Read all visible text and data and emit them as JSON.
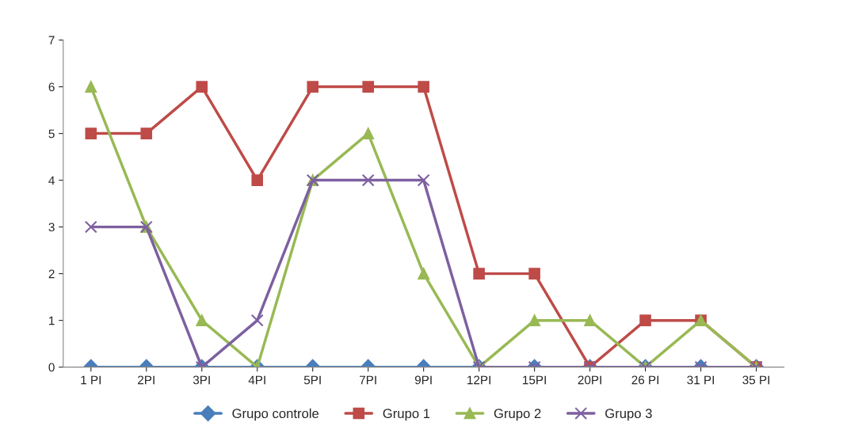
{
  "chart_data": {
    "type": "line",
    "categories": [
      "1 PI",
      "2PI",
      "3PI",
      "4PI",
      "5PI",
      "7PI",
      "9PI",
      "12PI",
      "15PI",
      "20PI",
      "26 PI",
      "31 PI",
      "35 PI"
    ],
    "series": [
      {
        "name": "Grupo controle",
        "color": "#4a7ebb",
        "marker": "diamond",
        "values": [
          0,
          0,
          0,
          0,
          0,
          0,
          0,
          0,
          0,
          0,
          0,
          0,
          0
        ]
      },
      {
        "name": "Grupo 1",
        "color": "#be4b48",
        "marker": "square",
        "values": [
          5,
          5,
          6,
          4,
          6,
          6,
          6,
          2,
          2,
          0,
          1,
          1,
          0
        ]
      },
      {
        "name": "Grupo 2",
        "color": "#98b954",
        "marker": "triangle",
        "values": [
          6,
          3,
          1,
          0,
          4,
          5,
          2,
          0,
          1,
          1,
          0,
          1,
          0
        ]
      },
      {
        "name": "Grupo 3",
        "color": "#7d60a0",
        "marker": "cross",
        "values": [
          3,
          3,
          0,
          1,
          4,
          4,
          4,
          0,
          0,
          0,
          0,
          0,
          0
        ]
      }
    ],
    "ylim": [
      0,
      7
    ],
    "yticks": [
      0,
      1,
      2,
      3,
      4,
      5,
      6,
      7
    ],
    "grid": false,
    "legend": "bottom",
    "line_style": "solid"
  }
}
